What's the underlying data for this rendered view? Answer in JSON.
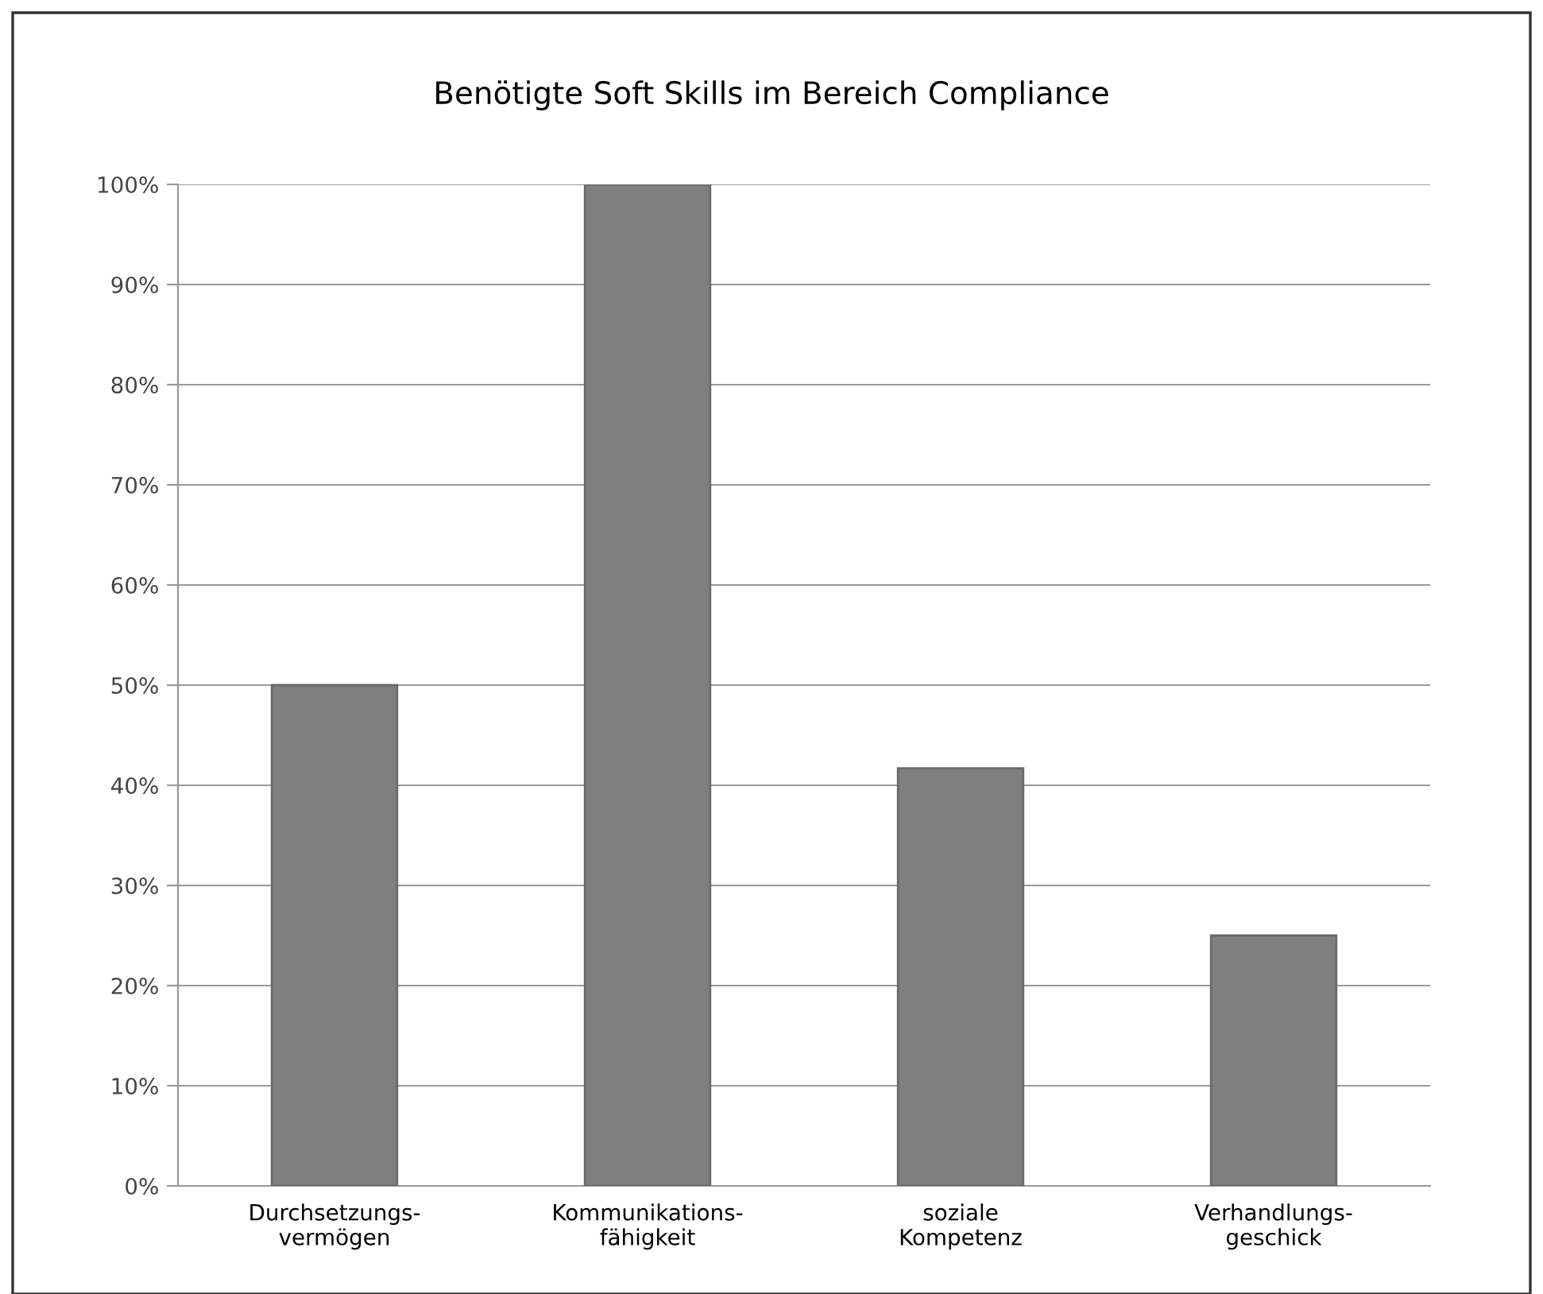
{
  "chart_data": {
    "type": "bar",
    "title": "Benötigte Soft Skills im Bereich Compliance",
    "categories": [
      "Durchsetzungs-\nvermögen",
      "Kommunikations-\nfähigkeit",
      "soziale\nKompetenz",
      "Verhandlungs-\ngeschick"
    ],
    "values": [
      50,
      100,
      41.7,
      25
    ],
    "color": "#7f7f7f",
    "ylim": [
      0,
      100
    ],
    "yticks": [
      {
        "value": 0,
        "label": "0%"
      },
      {
        "value": 10,
        "label": "10%"
      },
      {
        "value": 20,
        "label": "20%"
      },
      {
        "value": 30,
        "label": "30%"
      },
      {
        "value": 40,
        "label": "40%"
      },
      {
        "value": 50,
        "label": "50%"
      },
      {
        "value": 60,
        "label": "60%"
      },
      {
        "value": 70,
        "label": "70%"
      },
      {
        "value": 80,
        "label": "80%"
      },
      {
        "value": 90,
        "label": "90%"
      },
      {
        "value": 100,
        "label": "100%"
      }
    ],
    "grid": "y"
  }
}
